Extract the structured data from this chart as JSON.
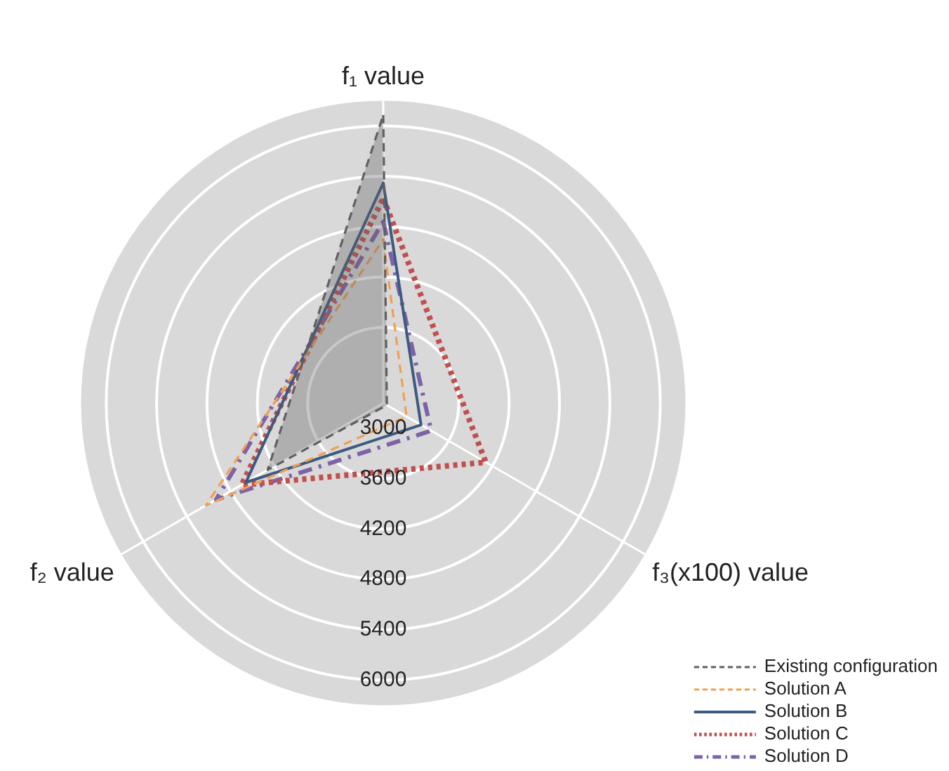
{
  "chart_data": {
    "type": "radar",
    "categories": [
      "f₁ value",
      "f₃(x100) value",
      "f₂ value"
    ],
    "ylim": [
      2700,
      6300
    ],
    "yticks": [
      3000,
      3600,
      4200,
      4800,
      5400,
      6000
    ],
    "grid": true,
    "legend": "bottom right",
    "marker": "none",
    "series": [
      {
        "name": "Existing configuration",
        "color": "#606060",
        "line_style": "dashed",
        "type": "area",
        "values": [
          6130,
          2750,
          4290
        ]
      },
      {
        "name": "Solution A",
        "color": "#f0a050",
        "line_style": "dashed",
        "values": [
          4650,
          3020,
          5140
        ]
      },
      {
        "name": "Solution B",
        "color": "#3d5a80",
        "line_style": "solid",
        "values": [
          5320,
          3220,
          4590
        ]
      },
      {
        "name": "Solution C",
        "color": "#c0504d",
        "line_style": "dotted",
        "values": [
          5140,
          4110,
          4650
        ]
      },
      {
        "name": "Solution D",
        "color": "#7e62a8",
        "line_style": "dashdot",
        "values": [
          4860,
          3360,
          5000
        ]
      }
    ]
  }
}
